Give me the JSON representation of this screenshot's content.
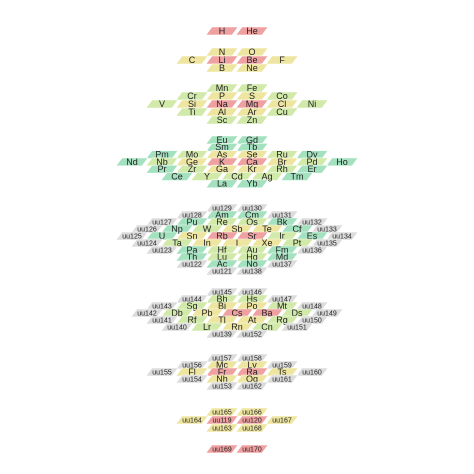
{
  "layers": [
    [
      [
        [
          "H",
          "#ec8f8f"
        ],
        [
          "He",
          "#ec8f8f"
        ]
      ]
    ],
    [
      [
        [
          "N",
          "#ebe08f"
        ],
        [
          "O",
          "#ebe08f"
        ]
      ],
      [
        [
          "C",
          "#ebe08f"
        ],
        [
          "Li",
          "#ec8f8f"
        ],
        [
          "Be",
          "#ec8f8f"
        ],
        [
          "F",
          "#ebe08f"
        ]
      ],
      [
        [
          "B",
          "#ebe08f"
        ],
        [
          "Ne",
          "#ebe08f"
        ]
      ]
    ],
    [
      [
        [
          "Mn",
          "#c9e59a"
        ],
        [
          "Fe",
          "#c9e59a"
        ]
      ],
      [
        [
          "Cr",
          "#c9e59a"
        ],
        [
          "P",
          "#ebe08f"
        ],
        [
          "S",
          "#ebe08f"
        ],
        [
          "Co",
          "#c9e59a"
        ]
      ],
      [
        [
          "V",
          "#c9e59a"
        ],
        [
          "Si",
          "#ebe08f"
        ],
        [
          "Na",
          "#ec8f8f"
        ],
        [
          "Mg",
          "#ec8f8f"
        ],
        [
          "Cl",
          "#ebe08f"
        ],
        [
          "Ni",
          "#c9e59a"
        ]
      ],
      [
        [
          "Ti",
          "#c9e59a"
        ],
        [
          "Al",
          "#ebe08f"
        ],
        [
          "Ar",
          "#ebe08f"
        ],
        [
          "Cu",
          "#c9e59a"
        ]
      ],
      [
        [
          "Sc",
          "#c9e59a"
        ],
        [
          "Zn",
          "#c9e59a"
        ]
      ]
    ],
    [
      [
        [
          "Eu",
          "#93dcb4"
        ],
        [
          "Gd",
          "#93dcb4"
        ]
      ],
      [
        [
          "Sm",
          "#93dcb4"
        ],
        [
          "Tb",
          "#93dcb4"
        ]
      ],
      [
        [
          "Pm",
          "#93dcb4"
        ],
        [
          "Mo",
          "#c9e59a"
        ],
        [
          "As",
          "#ebe08f"
        ],
        [
          "Se",
          "#ebe08f"
        ],
        [
          "Ru",
          "#c9e59a"
        ],
        [
          "Dy",
          "#93dcb4"
        ]
      ],
      [
        [
          "Nd",
          "#93dcb4"
        ],
        [
          "Nb",
          "#c9e59a"
        ],
        [
          "Ge",
          "#ebe08f"
        ],
        [
          "K",
          "#ec8f8f"
        ],
        [
          "Ca",
          "#ec8f8f"
        ],
        [
          "Br",
          "#ebe08f"
        ],
        [
          "Pd",
          "#c9e59a"
        ],
        [
          "Ho",
          "#93dcb4"
        ]
      ],
      [
        [
          "Pr",
          "#93dcb4"
        ],
        [
          "Zr",
          "#c9e59a"
        ],
        [
          "Ga",
          "#ebe08f"
        ],
        [
          "Kr",
          "#ebe08f"
        ],
        [
          "Rh",
          "#c9e59a"
        ],
        [
          "Er",
          "#93dcb4"
        ]
      ],
      [
        [
          "Ce",
          "#93dcb4"
        ],
        [
          "Y",
          "#c9e59a"
        ],
        [
          "Cd",
          "#c9e59a"
        ],
        [
          "Ag",
          "#c9e59a"
        ],
        [
          "Tm",
          "#93dcb4"
        ]
      ],
      [
        [
          "La",
          "#93dcb4"
        ],
        [
          "Yb",
          "#93dcb4"
        ]
      ]
    ],
    [
      [
        [
          "uu129",
          "#d6d6d6"
        ],
        [
          "uu130",
          "#d6d6d6"
        ]
      ],
      [
        [
          "uu128",
          "#d6d6d6"
        ],
        [
          "Am",
          "#93dcb4"
        ],
        [
          "Cm",
          "#93dcb4"
        ],
        [
          "uu131",
          "#d6d6d6"
        ]
      ],
      [
        [
          "uu127",
          "#d6d6d6"
        ],
        [
          "Pu",
          "#93dcb4"
        ],
        [
          "Re",
          "#c9e59a"
        ],
        [
          "Os",
          "#c9e59a"
        ],
        [
          "Bk",
          "#93dcb4"
        ],
        [
          "uu132",
          "#d6d6d6"
        ]
      ],
      [
        [
          "uu126",
          "#d6d6d6"
        ],
        [
          "Np",
          "#93dcb4"
        ],
        [
          "W",
          "#c9e59a"
        ],
        [
          "Sb",
          "#ebe08f"
        ],
        [
          "Te",
          "#ebe08f"
        ],
        [
          "Cf",
          "#93dcb4"
        ],
        [
          "uu133",
          "#d6d6d6"
        ]
      ],
      [
        [
          "uu125",
          "#d6d6d6"
        ],
        [
          "U",
          "#93dcb4"
        ],
        [
          "Sn",
          "#ebe08f"
        ],
        [
          "Rb",
          "#ec8f8f"
        ],
        [
          "Sr",
          "#ec8f8f"
        ],
        [
          "Ir",
          "#c9e59a"
        ],
        [
          "Es",
          "#93dcb4"
        ],
        [
          "uu134",
          "#d6d6d6"
        ]
      ],
      [
        [
          "uu124",
          "#d6d6d6"
        ],
        [
          "Ta",
          "#c9e59a"
        ],
        [
          "In",
          "#ebe08f"
        ],
        [
          "I",
          "#ebe08f"
        ],
        [
          "Xe",
          "#ebe08f"
        ],
        [
          "Pt",
          "#c9e59a"
        ],
        [
          "uu135",
          "#d6d6d6"
        ]
      ],
      [
        [
          "uu123",
          "#d6d6d6"
        ],
        [
          "Pa",
          "#93dcb4"
        ],
        [
          "Hf",
          "#c9e59a"
        ],
        [
          "Au",
          "#c9e59a"
        ],
        [
          "Fm",
          "#93dcb4"
        ],
        [
          "uu136",
          "#d6d6d6"
        ]
      ],
      [
        [
          "Th",
          "#93dcb4"
        ],
        [
          "Lu",
          "#c9e59a"
        ],
        [
          "Hg",
          "#c9e59a"
        ],
        [
          "Md",
          "#93dcb4"
        ]
      ],
      [
        [
          "uu122",
          "#d6d6d6"
        ],
        [
          "Ac",
          "#93dcb4"
        ],
        [
          "No",
          "#93dcb4"
        ],
        [
          "uu137",
          "#d6d6d6"
        ]
      ],
      [
        [
          "uu121",
          "#d6d6d6"
        ],
        [
          "uu138",
          "#d6d6d6"
        ]
      ]
    ],
    [
      [
        [
          "uu145",
          "#d6d6d6"
        ],
        [
          "uu146",
          "#d6d6d6"
        ]
      ],
      [
        [
          "uu144",
          "#d6d6d6"
        ],
        [
          "Bh",
          "#c9e59a"
        ],
        [
          "Hs",
          "#c9e59a"
        ],
        [
          "uu147",
          "#d6d6d6"
        ]
      ],
      [
        [
          "uu143",
          "#d6d6d6"
        ],
        [
          "Sg",
          "#c9e59a"
        ],
        [
          "Bi",
          "#ebe08f"
        ],
        [
          "Po",
          "#ebe08f"
        ],
        [
          "Mt",
          "#c9e59a"
        ],
        [
          "uu148",
          "#d6d6d6"
        ]
      ],
      [
        [
          "uu142",
          "#d6d6d6"
        ],
        [
          "Db",
          "#c9e59a"
        ],
        [
          "Pb",
          "#ebe08f"
        ],
        [
          "Cs",
          "#ec8f8f"
        ],
        [
          "Ba",
          "#ec8f8f"
        ],
        [
          "Ds",
          "#c9e59a"
        ],
        [
          "uu149",
          "#d6d6d6"
        ]
      ],
      [
        [
          "uu141",
          "#d6d6d6"
        ],
        [
          "Rf",
          "#c9e59a"
        ],
        [
          "Tl",
          "#ebe08f"
        ],
        [
          "At",
          "#ebe08f"
        ],
        [
          "Rg",
          "#c9e59a"
        ],
        [
          "uu150",
          "#d6d6d6"
        ]
      ],
      [
        [
          "uu140",
          "#d6d6d6"
        ],
        [
          "Lr",
          "#c9e59a"
        ],
        [
          "Rn",
          "#ebe08f"
        ],
        [
          "Cn",
          "#c9e59a"
        ],
        [
          "uu151",
          "#d6d6d6"
        ]
      ],
      [
        [
          "uu139",
          "#d6d6d6"
        ],
        [
          "uu152",
          "#d6d6d6"
        ]
      ]
    ],
    [
      [
        [
          "uu157",
          "#d6d6d6"
        ],
        [
          "uu158",
          "#d6d6d6"
        ]
      ],
      [
        [
          "uu156",
          "#d6d6d6"
        ],
        [
          "Mc",
          "#ebe08f"
        ],
        [
          "Lv",
          "#ebe08f"
        ],
        [
          "uu159",
          "#d6d6d6"
        ]
      ],
      [
        [
          "uu155",
          "#d6d6d6"
        ],
        [
          "Fl",
          "#ebe08f"
        ],
        [
          "Fr",
          "#ec8f8f"
        ],
        [
          "Ra",
          "#ec8f8f"
        ],
        [
          "Ts",
          "#ebe08f"
        ],
        [
          "uu160",
          "#d6d6d6"
        ]
      ],
      [
        [
          "uu154",
          "#d6d6d6"
        ],
        [
          "Nh",
          "#ebe08f"
        ],
        [
          "Og",
          "#ebe08f"
        ],
        [
          "uu161",
          "#d6d6d6"
        ]
      ],
      [
        [
          "uu153",
          "#d6d6d6"
        ],
        [
          "uu162",
          "#d6d6d6"
        ]
      ]
    ],
    [
      [
        [
          "uu165",
          "#ebe08f"
        ],
        [
          "uu166",
          "#ebe08f"
        ]
      ],
      [
        [
          "uu164",
          "#ebe08f"
        ],
        [
          "uu119",
          "#ec8f8f"
        ],
        [
          "uu120",
          "#ec8f8f"
        ],
        [
          "uu167",
          "#ebe08f"
        ]
      ],
      [
        [
          "uu163",
          "#ebe08f"
        ],
        [
          "uu168",
          "#ebe08f"
        ]
      ]
    ],
    [
      [
        [
          "uu169",
          "#ec8f8f"
        ],
        [
          "uu170",
          "#ec8f8f"
        ]
      ]
    ]
  ]
}
